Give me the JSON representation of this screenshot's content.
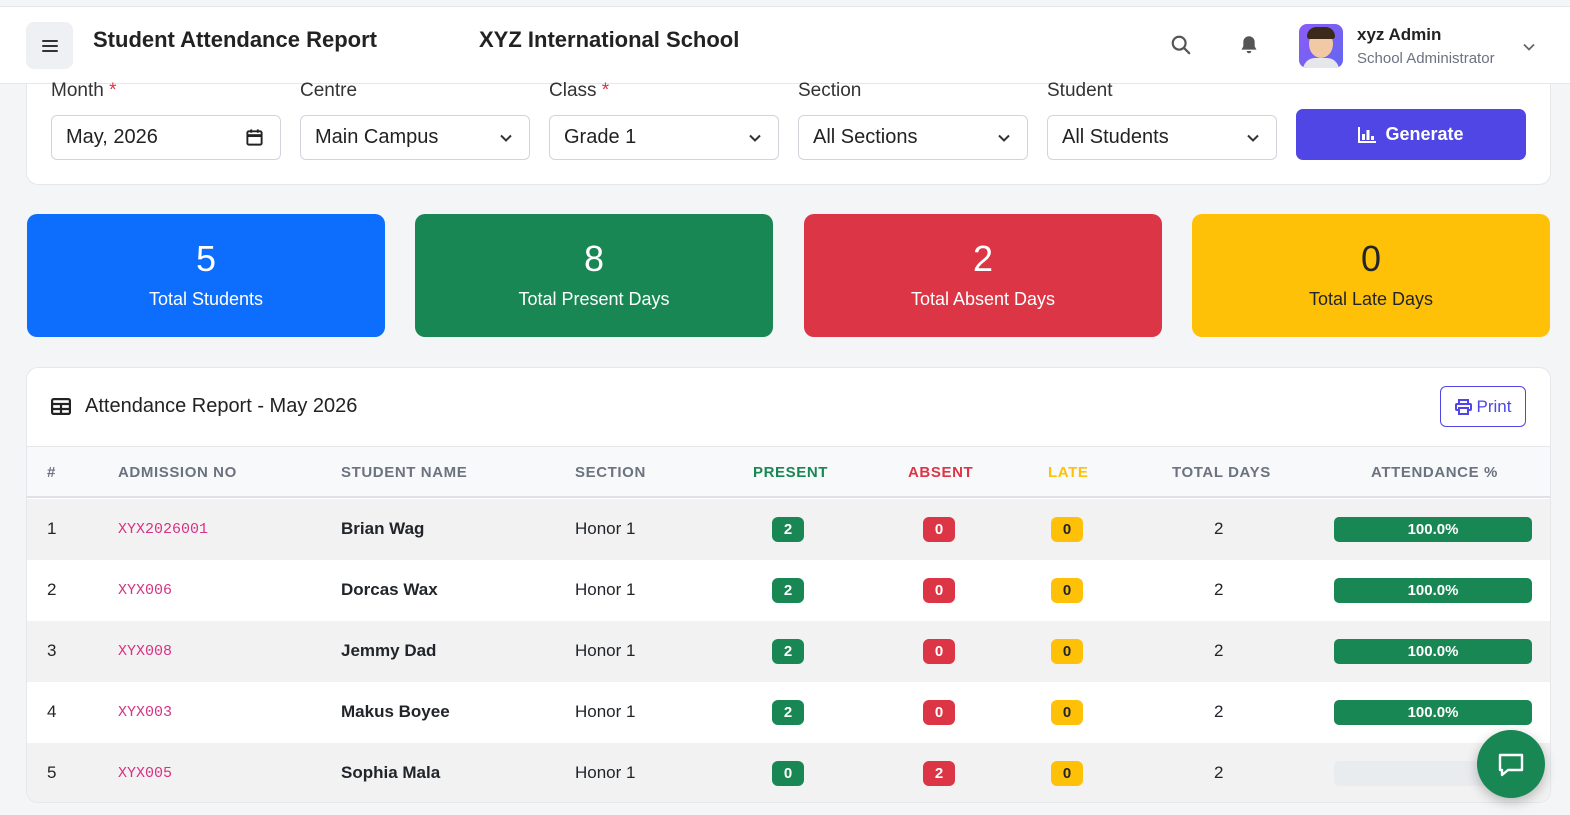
{
  "header": {
    "title": "Student Attendance Report",
    "school": "XYZ International School",
    "user": {
      "name": "xyz Admin",
      "role": "School Administrator"
    }
  },
  "filters": {
    "month": {
      "label": "Month",
      "required": "*",
      "value": "May, 2026"
    },
    "centre": {
      "label": "Centre",
      "value": "Main Campus"
    },
    "class": {
      "label": "Class",
      "required": "*",
      "value": "Grade 1"
    },
    "section": {
      "label": "Section",
      "value": "All Sections"
    },
    "student": {
      "label": "Student",
      "value": "All Students"
    },
    "generate_label": "Generate"
  },
  "stats": [
    {
      "value": "5",
      "label": "Total Students",
      "color": "#0d6efd"
    },
    {
      "value": "8",
      "label": "Total Present Days",
      "color": "#198754"
    },
    {
      "value": "2",
      "label": "Total Absent Days",
      "color": "#dc3545"
    },
    {
      "value": "0",
      "label": "Total Late Days",
      "color": "#ffc107"
    }
  ],
  "report": {
    "title": "Attendance Report - May 2026",
    "print_label": "Print",
    "columns": [
      "#",
      "ADMISSION NO",
      "STUDENT NAME",
      "SECTION",
      "PRESENT",
      "ABSENT",
      "LATE",
      "TOTAL DAYS",
      "ATTENDANCE %"
    ],
    "rows": [
      {
        "num": "1",
        "admission": "XYX2026001",
        "name": "Brian Wag",
        "section": "Honor 1",
        "present": "2",
        "absent": "0",
        "late": "0",
        "total": "2",
        "attendance": "100.0%",
        "attendance_fraction": 1.0
      },
      {
        "num": "2",
        "admission": "XYX006",
        "name": "Dorcas Wax",
        "section": "Honor 1",
        "present": "2",
        "absent": "0",
        "late": "0",
        "total": "2",
        "attendance": "100.0%",
        "attendance_fraction": 1.0
      },
      {
        "num": "3",
        "admission": "XYX008",
        "name": "Jemmy Dad",
        "section": "Honor 1",
        "present": "2",
        "absent": "0",
        "late": "0",
        "total": "2",
        "attendance": "100.0%",
        "attendance_fraction": 1.0
      },
      {
        "num": "4",
        "admission": "XYX003",
        "name": "Makus Boyee",
        "section": "Honor 1",
        "present": "2",
        "absent": "0",
        "late": "0",
        "total": "2",
        "attendance": "100.0%",
        "attendance_fraction": 1.0
      },
      {
        "num": "5",
        "admission": "XYX005",
        "name": "Sophia Mala",
        "section": "Honor 1",
        "present": "0",
        "absent": "2",
        "late": "0",
        "total": "2",
        "attendance": "",
        "attendance_fraction": 0.0
      }
    ]
  },
  "colors": {
    "present": "#198754",
    "absent": "#dc3545",
    "late": "#ffc107",
    "accent": "#4f46e5"
  },
  "icons": {
    "menu": "menu-icon",
    "search": "search-icon",
    "bell": "bell-icon",
    "chat": "chat-icon",
    "print": "printer-icon",
    "table": "table-icon",
    "generate": "chart-icon"
  }
}
